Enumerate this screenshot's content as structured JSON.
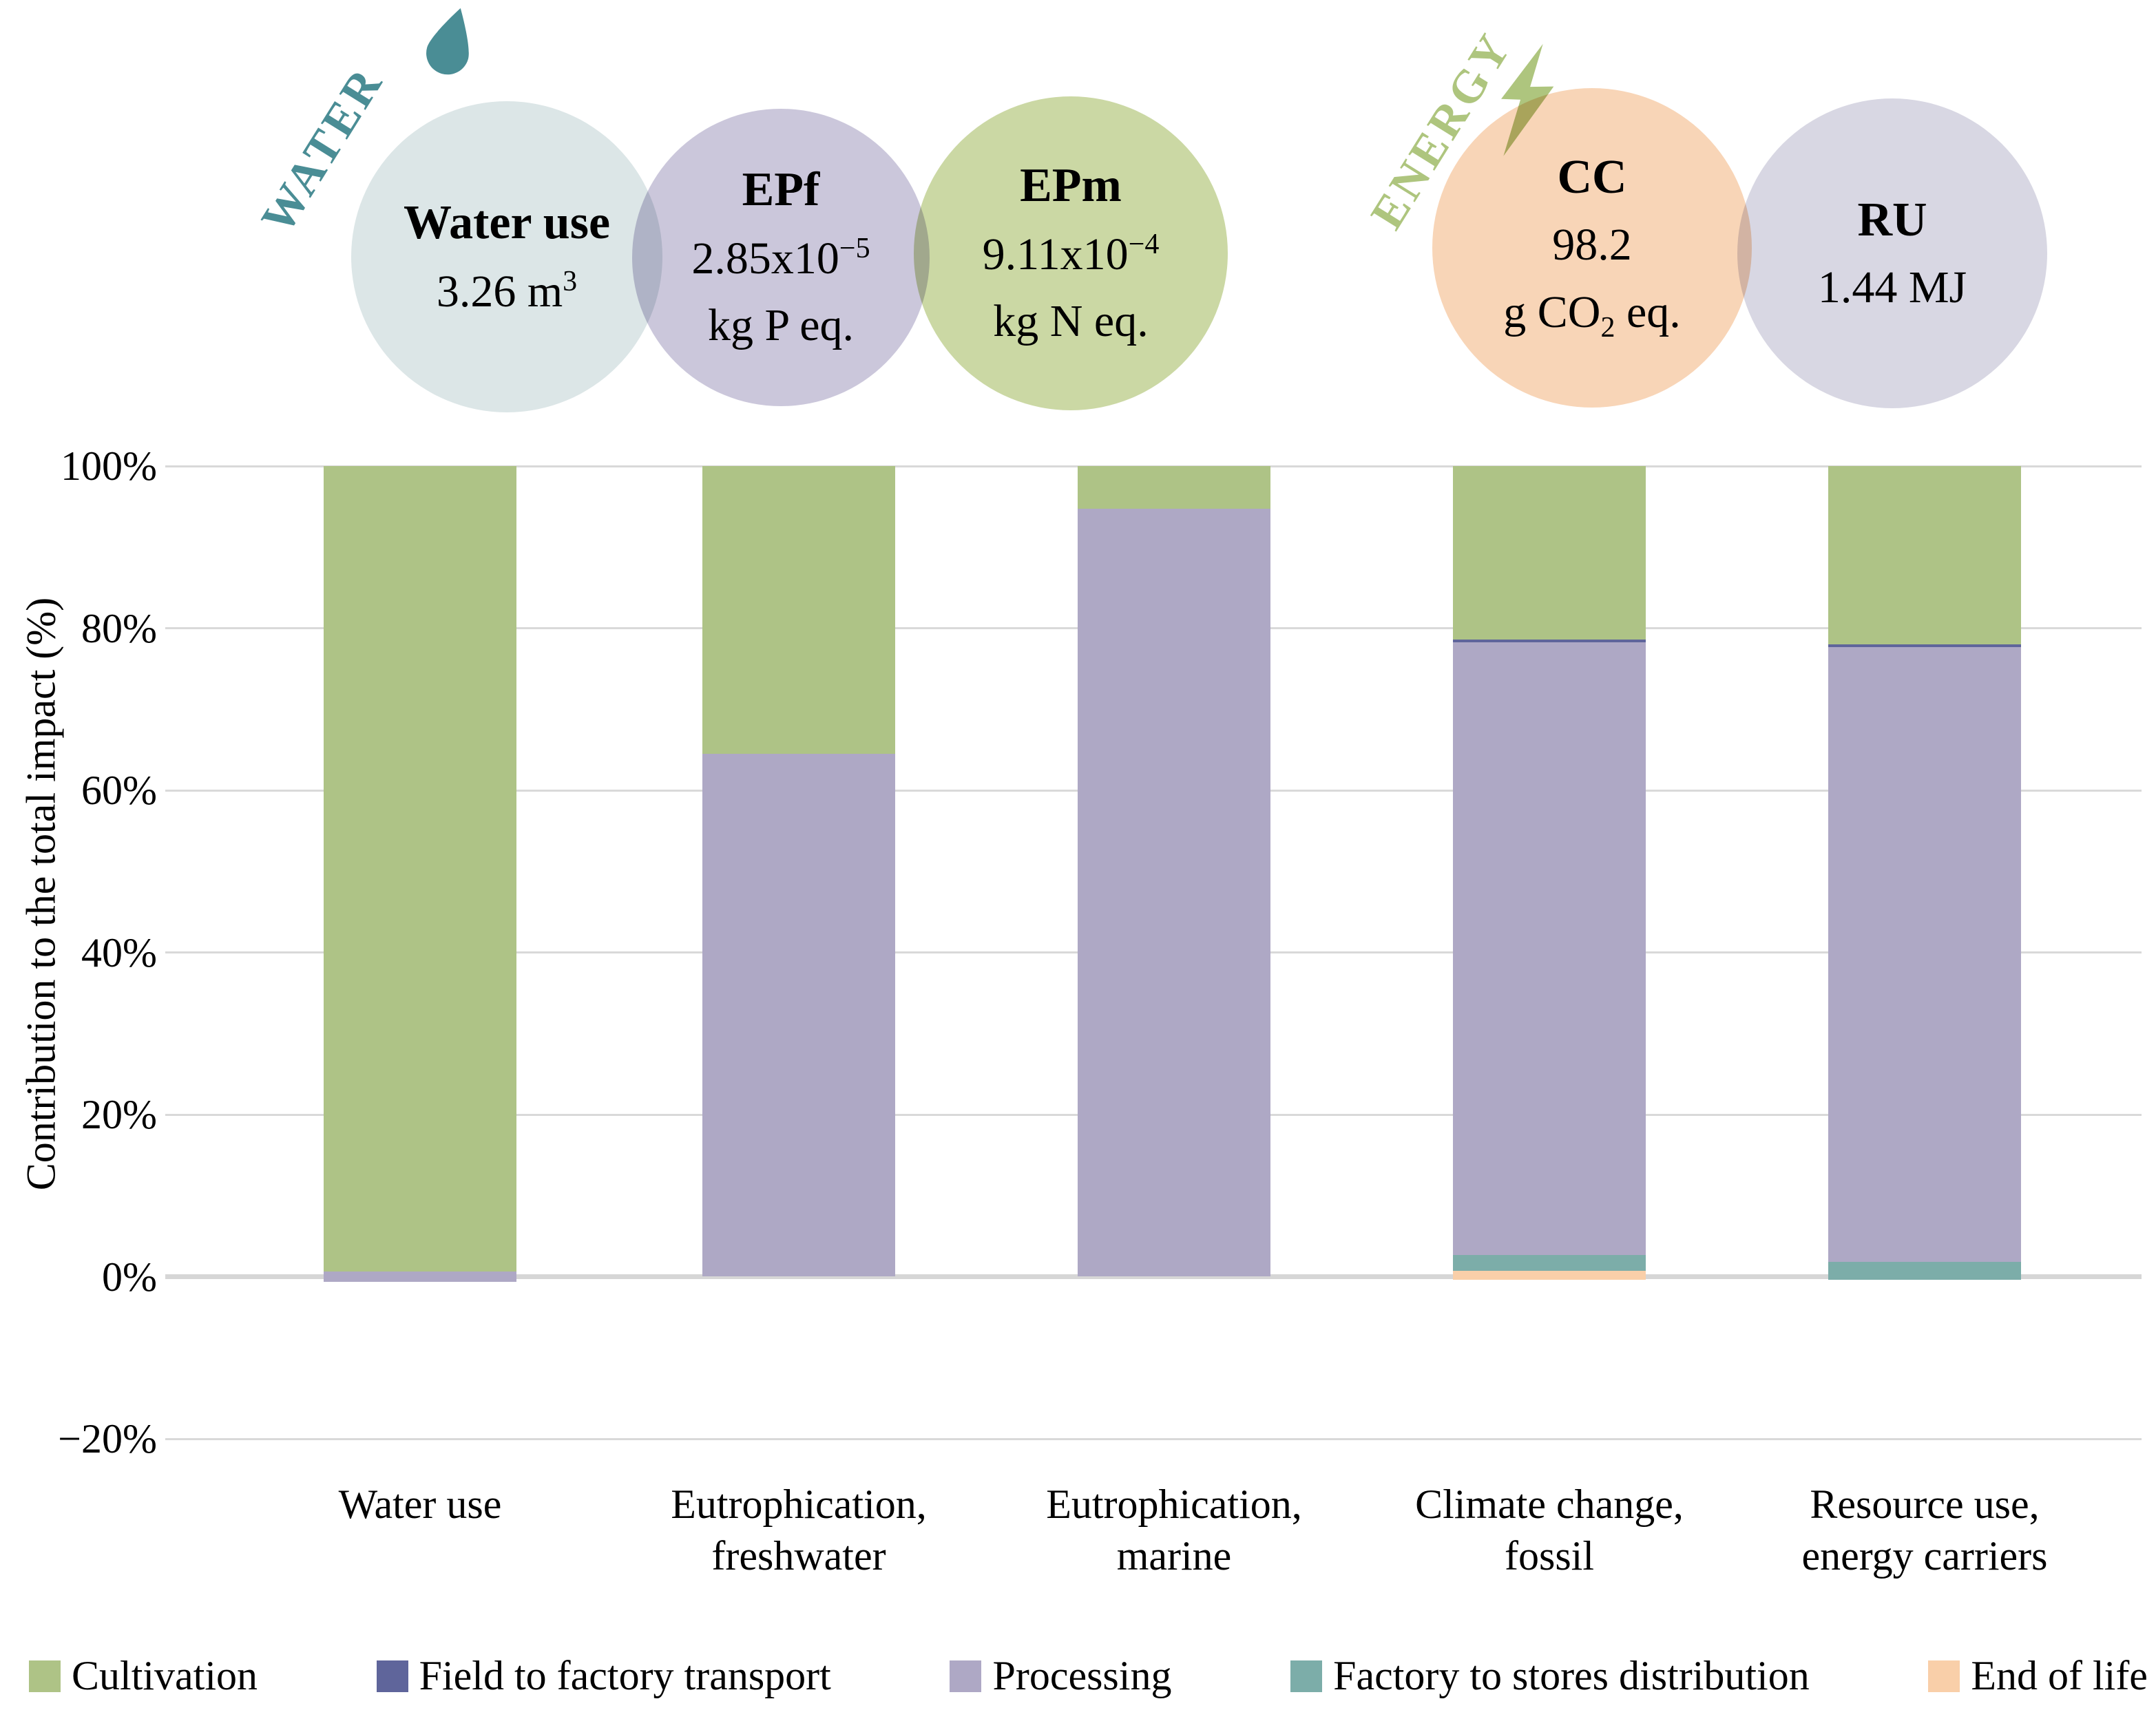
{
  "figure": {
    "groups": [
      {
        "id": "water",
        "label": "WATER",
        "color": "#4A8D95",
        "icon": "droplet-icon"
      },
      {
        "id": "energy",
        "label": "ENERGY",
        "color": "#AEC57E",
        "icon": "lightning-icon"
      }
    ],
    "circles": [
      {
        "id": "water-use",
        "fill": "#DCE6E7",
        "title": "Water use",
        "lines": [
          [
            {
              "t": "3.26 m"
            },
            {
              "sup": "3"
            }
          ]
        ]
      },
      {
        "id": "epf",
        "fill": "#CBC7DB",
        "title": "EPf",
        "lines": [
          [
            {
              "t": "2.85x10"
            },
            {
              "sup": "−5"
            }
          ],
          [
            {
              "t": "kg P eq."
            }
          ]
        ]
      },
      {
        "id": "epm",
        "fill": "#CBD8A4",
        "title": "EPm",
        "lines": [
          [
            {
              "t": "9.11x10"
            },
            {
              "sup": "−4"
            }
          ],
          [
            {
              "t": "kg N eq."
            }
          ]
        ]
      },
      {
        "id": "cc",
        "fill": "#F8D5B7",
        "title": "CC",
        "lines": [
          [
            {
              "t": "98.2"
            }
          ],
          [
            {
              "t": "g CO"
            },
            {
              "sub": "2"
            },
            {
              "t": " eq."
            }
          ]
        ]
      },
      {
        "id": "ru",
        "fill": "#D8D7E3",
        "title": "RU",
        "lines": [
          [
            {
              "t": "1.44 MJ"
            }
          ]
        ]
      }
    ]
  },
  "chart_data": {
    "type": "bar",
    "stacked": true,
    "title": "",
    "xlabel": "",
    "ylabel": "Contribution to the total impact (%)",
    "ylim": [
      -20,
      100
    ],
    "grid": true,
    "legend_position": "bottom",
    "yticks": [
      {
        "v": 100,
        "label": "100%"
      },
      {
        "v": 80,
        "label": "80%"
      },
      {
        "v": 60,
        "label": "60%"
      },
      {
        "v": 40,
        "label": "40%"
      },
      {
        "v": 20,
        "label": "20%"
      },
      {
        "v": 0,
        "label": "0%"
      },
      {
        "v": -20,
        "label": "−20%"
      }
    ],
    "categories": [
      {
        "label_lines": [
          "Water use"
        ],
        "start": -0.6,
        "segments": [
          {
            "name": "Processing",
            "value": 1.2
          },
          {
            "name": "Cultivation",
            "value": 99.4
          }
        ]
      },
      {
        "label_lines": [
          "Eutrophication,",
          "freshwater"
        ],
        "start": 0,
        "segments": [
          {
            "name": "Processing",
            "value": 64.5
          },
          {
            "name": "Cultivation",
            "value": 35.5
          }
        ]
      },
      {
        "label_lines": [
          "Eutrophication,",
          "marine"
        ],
        "start": 0,
        "segments": [
          {
            "name": "Processing",
            "value": 94.7
          },
          {
            "name": "Cultivation",
            "value": 5.3
          }
        ]
      },
      {
        "label_lines": [
          "Climate change,",
          "fossil"
        ],
        "start": -0.4,
        "segments": [
          {
            "name": "End of life",
            "value": 1.1
          },
          {
            "name": "Factory to stores distribution",
            "value": 2.0
          },
          {
            "name": "Processing",
            "value": 75.6
          },
          {
            "name": "Field to factory transport",
            "value": 0.3
          },
          {
            "name": "Cultivation",
            "value": 21.4
          }
        ]
      },
      {
        "label_lines": [
          "Resource use,",
          "energy carriers"
        ],
        "start": -0.4,
        "segments": [
          {
            "name": "Factory to stores distribution",
            "value": 2.2
          },
          {
            "name": "Processing",
            "value": 75.9
          },
          {
            "name": "Field to factory transport",
            "value": 0.3
          },
          {
            "name": "Cultivation",
            "value": 22.0
          }
        ]
      }
    ],
    "legend": [
      {
        "name": "Cultivation",
        "color": "#AEC386"
      },
      {
        "name": "Field to factory transport",
        "color": "#5F659B"
      },
      {
        "name": "Processing",
        "color": "#AEA8C5"
      },
      {
        "name": "Factory to stores distribution",
        "color": "#7CADA9"
      },
      {
        "name": "End of life",
        "color": "#F9CFA9"
      }
    ],
    "colors": {
      "gridline": "#D9D9D9",
      "zero_line": "#D6D6D6"
    }
  }
}
